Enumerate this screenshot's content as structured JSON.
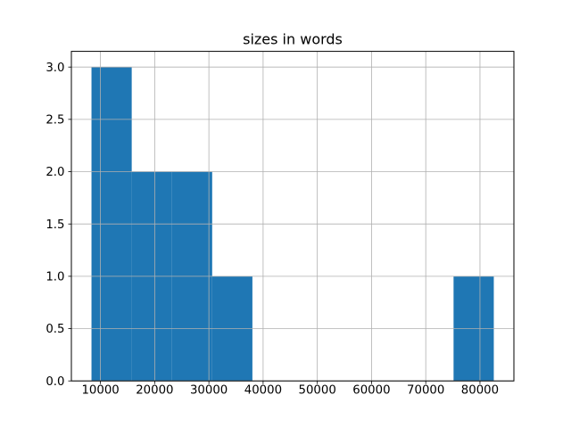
{
  "chart_data": {
    "type": "bar",
    "subtype": "histogram",
    "title": "sizes in words",
    "xlabel": "",
    "ylabel": "",
    "bin_edges": [
      8344,
      15765,
      23185,
      30606,
      38026,
      45447,
      52867,
      60288,
      67708,
      75129,
      82550
    ],
    "counts": [
      3,
      2,
      2,
      1,
      0,
      0,
      0,
      0,
      0,
      1
    ],
    "xlim": [
      4634,
      86260
    ],
    "ylim": [
      0,
      3.15
    ],
    "x_ticks": [
      10000,
      20000,
      30000,
      40000,
      50000,
      60000,
      70000,
      80000
    ],
    "x_tick_labels": [
      "10000",
      "20000",
      "30000",
      "40000",
      "50000",
      "60000",
      "70000",
      "80000"
    ],
    "y_ticks": [
      0,
      0.5,
      1,
      1.5,
      2,
      2.5,
      3
    ],
    "y_tick_labels": [
      "0.0",
      "0.5",
      "1.0",
      "1.5",
      "2.0",
      "2.5",
      "3.0"
    ],
    "grid": true,
    "grid_above_bars": true,
    "legend": "none",
    "colors": {
      "bar": "#1f77b4",
      "grid": "#b0b0b0",
      "spine": "#000000",
      "background": "#ffffff",
      "text": "#000000"
    }
  }
}
